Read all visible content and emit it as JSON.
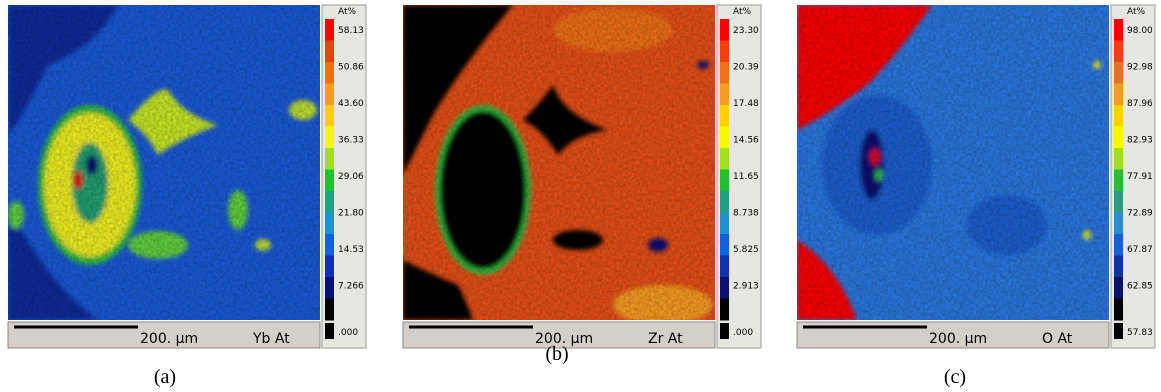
{
  "panels": [
    {
      "caption": "(a)",
      "scale_label": "200. µm",
      "element_label": "Yb At",
      "colorbar": {
        "unit": "At%",
        "labels": [
          "58.13",
          "50.86",
          "43.60",
          "36.33",
          "29.06",
          "21.80",
          "14.53",
          "7.266",
          ".000"
        ]
      }
    },
    {
      "caption": "(b)",
      "scale_label": "200. µm",
      "element_label": "Zr At",
      "colorbar": {
        "unit": "At%",
        "labels": [
          "23.30",
          "20.39",
          "17.48",
          "14.56",
          "11.65",
          "8.738",
          "5.825",
          "2.913",
          ".000"
        ]
      }
    },
    {
      "caption": "(c)",
      "scale_label": "200. µm",
      "element_label": "O  At",
      "colorbar": {
        "unit": "At%",
        "labels": [
          "98.00",
          "92.98",
          "87.96",
          "82.93",
          "77.91",
          "72.89",
          "67.87",
          "62.85",
          "57.83"
        ]
      }
    }
  ]
}
